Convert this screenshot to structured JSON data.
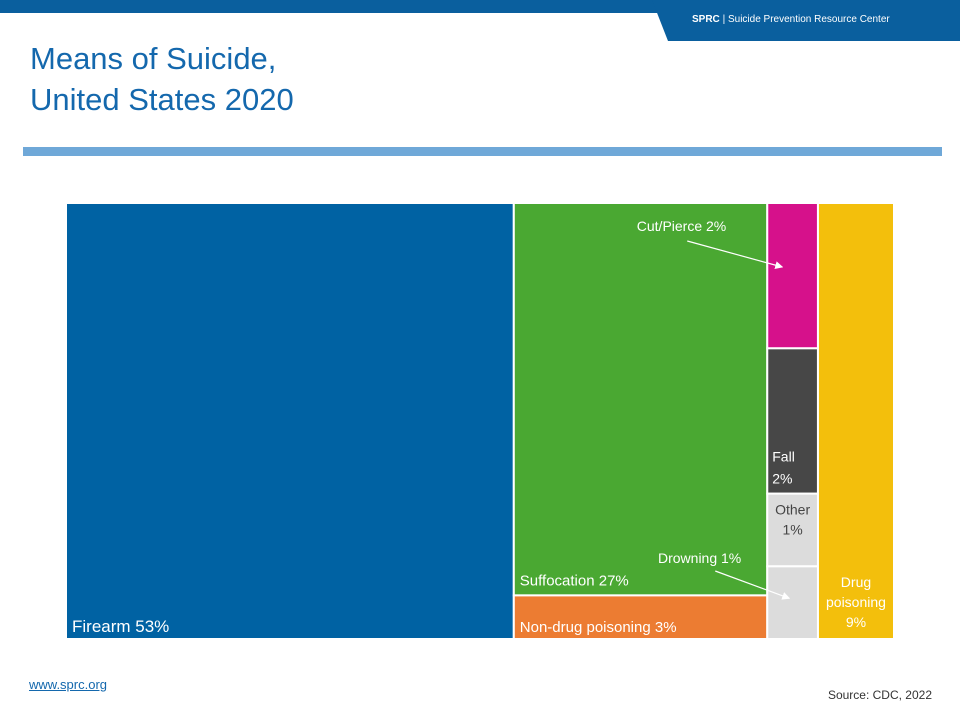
{
  "header": {
    "brand": "SPRC",
    "separator": "|",
    "org_name": "Suicide Prevention Resource Center"
  },
  "title": {
    "line1": "Means of Suicide,",
    "line2": "United States 2020"
  },
  "footer": {
    "link": "www.sprc.org",
    "source": "Source: CDC, 2022"
  },
  "colors": {
    "brand_blue": "#0a5f9e",
    "firearm": "#0062a3",
    "suffocation": "#4aa832",
    "non_drug_poisoning": "#ec7c32",
    "cut_pierce": "#d6118b",
    "fall": "#474747",
    "other": "#dcdcdc",
    "drowning": "#dcdcdc",
    "drug_poisoning": "#f3bf0c"
  },
  "chart_data": {
    "type": "treemap",
    "units": "percent",
    "items": [
      {
        "name": "Firearm",
        "value": 53,
        "label": "Firearm 53%"
      },
      {
        "name": "Suffocation",
        "value": 27,
        "label": "Suffocation 27%"
      },
      {
        "name": "Non-drug poisoning",
        "value": 3,
        "label": "Non-drug poisoning 3%"
      },
      {
        "name": "Cut/Pierce",
        "value": 2,
        "label": "Cut/Pierce 2%"
      },
      {
        "name": "Fall",
        "value": 2,
        "label_lines": [
          "Fall",
          "2%"
        ]
      },
      {
        "name": "Other",
        "value": 1,
        "label_lines": [
          "Other",
          "1%"
        ]
      },
      {
        "name": "Drowning",
        "value": 1,
        "label": "Drowning 1%"
      },
      {
        "name": "Drug poisoning",
        "value": 9,
        "label_lines": [
          "Drug",
          "poisoning",
          "9%"
        ]
      }
    ]
  }
}
